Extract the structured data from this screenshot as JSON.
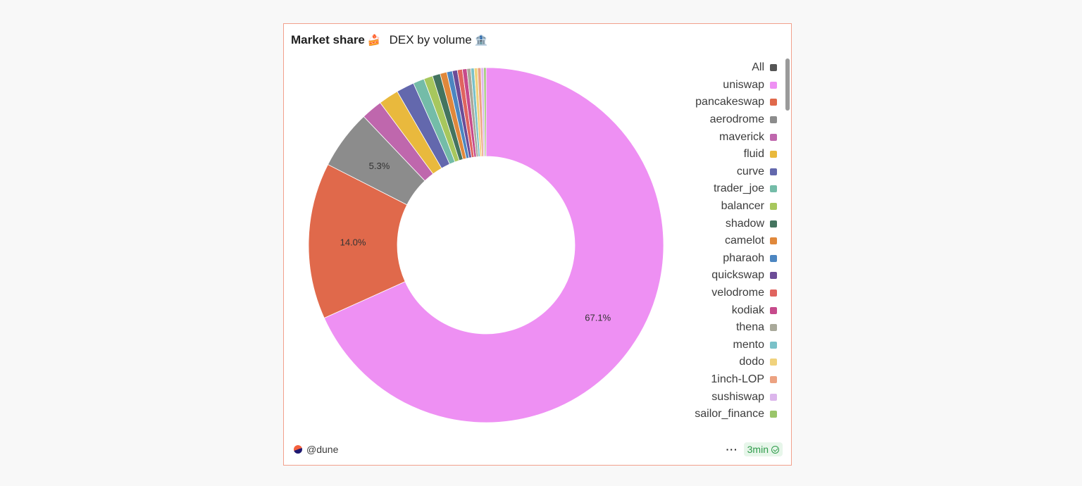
{
  "header": {
    "title": "Market share",
    "title_emoji": "🍰",
    "subtitle": "DEX by volume",
    "subtitle_emoji": "🏦"
  },
  "chart_data": {
    "type": "pie",
    "style": "donut",
    "legend_position": "right",
    "categories": [
      "uniswap",
      "pancakeswap",
      "aerodrome",
      "maverick",
      "fluid",
      "curve",
      "trader_joe",
      "balancer",
      "shadow",
      "camelot",
      "pharaoh",
      "quickswap",
      "velodrome",
      "kodiak",
      "thena",
      "mento",
      "dodo",
      "1inch-LOP",
      "sushiswap",
      "sailor_finance"
    ],
    "values": [
      67.1,
      14.0,
      5.3,
      1.9,
      1.8,
      1.6,
      1.0,
      0.8,
      0.7,
      0.6,
      0.5,
      0.45,
      0.45,
      0.4,
      0.35,
      0.3,
      0.3,
      0.3,
      0.25,
      0.2
    ],
    "colors": [
      "#ee90f3",
      "#e0694b",
      "#8c8c8c",
      "#bf67ad",
      "#e9b93d",
      "#6368ad",
      "#74bca8",
      "#a7c75d",
      "#44745f",
      "#e0883b",
      "#4c86c1",
      "#6c4c97",
      "#e0645f",
      "#c64a8b",
      "#a9a99a",
      "#7ac1c8",
      "#f0d27d",
      "#eca281",
      "#dcb6ec",
      "#9ac56a"
    ],
    "data_labels": [
      {
        "index": 0,
        "text": "67.1%"
      },
      {
        "index": 1,
        "text": "14.0%"
      },
      {
        "index": 2,
        "text": "5.3%"
      }
    ]
  },
  "legend": {
    "items": [
      {
        "label": "All",
        "color": "#555555"
      },
      {
        "label": "uniswap",
        "color": "#ee90f3"
      },
      {
        "label": "pancakeswap",
        "color": "#e0694b"
      },
      {
        "label": "aerodrome",
        "color": "#8c8c8c"
      },
      {
        "label": "maverick",
        "color": "#bf67ad"
      },
      {
        "label": "fluid",
        "color": "#e9b93d"
      },
      {
        "label": "curve",
        "color": "#6368ad"
      },
      {
        "label": "trader_joe",
        "color": "#74bca8"
      },
      {
        "label": "balancer",
        "color": "#a7c75d"
      },
      {
        "label": "shadow",
        "color": "#44745f"
      },
      {
        "label": "camelot",
        "color": "#e0883b"
      },
      {
        "label": "pharaoh",
        "color": "#4c86c1"
      },
      {
        "label": "quickswap",
        "color": "#6c4c97"
      },
      {
        "label": "velodrome",
        "color": "#e0645f"
      },
      {
        "label": "kodiak",
        "color": "#c64a8b"
      },
      {
        "label": "thena",
        "color": "#a9a99a"
      },
      {
        "label": "mento",
        "color": "#7ac1c8"
      },
      {
        "label": "dodo",
        "color": "#f0d27d"
      },
      {
        "label": "1inch-LOP",
        "color": "#eca281"
      },
      {
        "label": "sushiswap",
        "color": "#dcb6ec"
      },
      {
        "label": "sailor_finance",
        "color": "#9ac56a"
      }
    ]
  },
  "footer": {
    "author": "@dune",
    "more_label": "···",
    "refresh_badge": "3min"
  }
}
